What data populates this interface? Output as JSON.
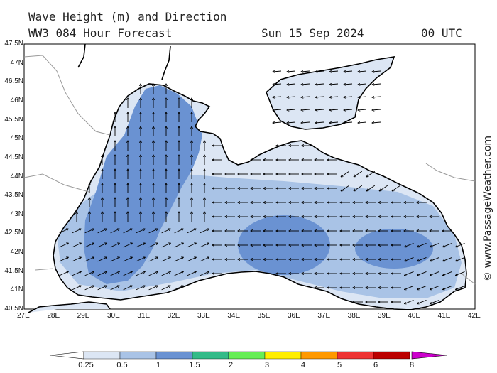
{
  "header": {
    "title": "Wave Height (m) and Direction",
    "model": "WW3 084 Hour Forecast",
    "date": "Sun 15 Sep 2024",
    "time": "00 UTC"
  },
  "credit": "© www.PassageWeather.com",
  "axes": {
    "lat_labels": [
      "47.5N",
      "47N",
      "46.5N",
      "46N",
      "45.5N",
      "45N",
      "44.5N",
      "44N",
      "43.5N",
      "43N",
      "42.5N",
      "42N",
      "41.5N",
      "41N",
      "40.5N"
    ],
    "lon_labels": [
      "27E",
      "28E",
      "29E",
      "30E",
      "31E",
      "32E",
      "33E",
      "34E",
      "35E",
      "36E",
      "37E",
      "38E",
      "39E",
      "40E",
      "41E",
      "42E"
    ],
    "lat_range": [
      40.5,
      47.5
    ],
    "lon_range": [
      27,
      42
    ]
  },
  "legend": {
    "labels": [
      "0.25",
      "0.5",
      "1",
      "1.5",
      "2",
      "3",
      "4",
      "5",
      "6",
      "8"
    ],
    "colors": [
      "#ffffff",
      "#dce6f4",
      "#a9c3e6",
      "#6a92d2",
      "#33bb88",
      "#66ee55",
      "#ffee00",
      "#ff9900",
      "#ee3333",
      "#bb0000",
      "#cc00cc"
    ]
  },
  "colors": {
    "land": "#ffffff",
    "coast": "#000000",
    "border": "#999999",
    "sea_0_25": "#dce6f4",
    "sea_0_5": "#a9c3e6",
    "sea_1_0": "#6a92d2"
  }
}
